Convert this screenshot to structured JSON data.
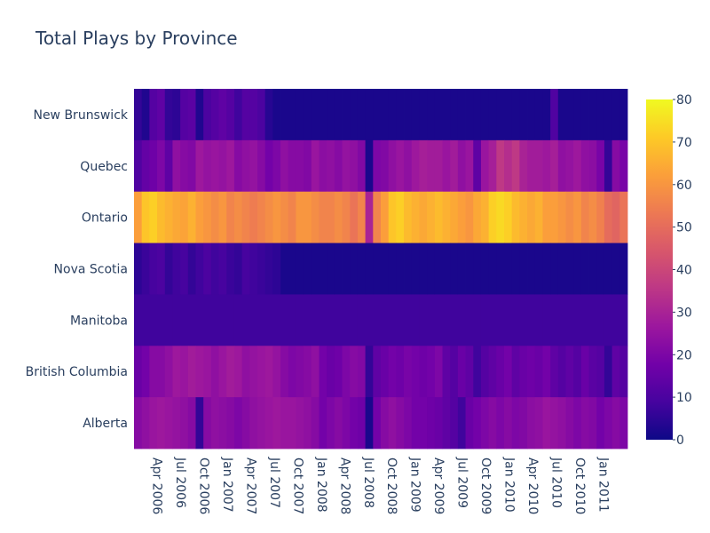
{
  "chart_data": {
    "type": "heatmap",
    "title": "Total Plays by Province",
    "xlabel": "",
    "ylabel": "",
    "x_start": "2006-01",
    "x_end": "2011-04",
    "x_ticks": [
      "Apr 2006",
      "Jul 2006",
      "Oct 2006",
      "Jan 2007",
      "Apr 2007",
      "Jul 2007",
      "Oct 2007",
      "Jan 2008",
      "Apr 2008",
      "Jul 2008",
      "Oct 2008",
      "Jan 2009",
      "Apr 2009",
      "Jul 2009",
      "Oct 2009",
      "Jan 2010",
      "Apr 2010",
      "Jul 2010",
      "Oct 2010",
      "Jan 2011"
    ],
    "y_categories": [
      "New Brunswick",
      "Quebec",
      "Ontario",
      "Nova Scotia",
      "Manitoba",
      "British Columbia",
      "Alberta"
    ],
    "series": [
      {
        "name": "New Brunswick",
        "values": [
          6,
          3,
          12,
          14,
          6,
          5,
          12,
          13,
          3,
          10,
          12,
          14,
          12,
          8,
          12,
          12,
          10,
          4,
          2,
          2,
          2,
          2,
          2,
          2,
          2,
          2,
          2,
          2,
          2,
          2,
          2,
          2,
          2,
          2,
          2,
          2,
          2,
          2,
          2,
          2,
          2,
          2,
          2,
          2,
          2,
          2,
          2,
          2,
          2,
          2,
          2,
          2,
          2,
          2,
          11,
          2,
          2,
          2,
          2,
          2,
          2,
          2,
          2,
          2
        ]
      },
      {
        "name": "Quebec",
        "values": [
          11,
          15,
          17,
          20,
          14,
          24,
          22,
          21,
          27,
          25,
          26,
          25,
          27,
          22,
          24,
          25,
          22,
          18,
          20,
          24,
          22,
          22,
          21,
          26,
          23,
          24,
          22,
          25,
          24,
          21,
          2,
          20,
          21,
          24,
          26,
          24,
          27,
          29,
          28,
          28,
          26,
          28,
          24,
          26,
          14,
          26,
          29,
          36,
          33,
          36,
          30,
          28,
          28,
          27,
          29,
          24,
          25,
          27,
          24,
          23,
          19,
          6,
          22,
          19
        ]
      },
      {
        "name": "Ontario",
        "values": [
          62,
          70,
          72,
          68,
          66,
          64,
          63,
          66,
          62,
          60,
          58,
          60,
          56,
          58,
          56,
          54,
          56,
          58,
          60,
          58,
          56,
          60,
          60,
          58,
          56,
          56,
          58,
          56,
          52,
          56,
          30,
          56,
          62,
          70,
          72,
          68,
          66,
          64,
          66,
          68,
          66,
          64,
          62,
          60,
          64,
          66,
          72,
          74,
          72,
          68,
          66,
          64,
          66,
          62,
          62,
          60,
          58,
          60,
          56,
          58,
          55,
          50,
          48,
          52
        ]
      },
      {
        "name": "Nova Scotia",
        "values": [
          5,
          7,
          9,
          10,
          6,
          8,
          9,
          6,
          8,
          10,
          8,
          9,
          7,
          6,
          9,
          8,
          7,
          6,
          5,
          2,
          2,
          2,
          2,
          2,
          2,
          2,
          2,
          2,
          2,
          2,
          2,
          2,
          2,
          2,
          2,
          2,
          2,
          2,
          2,
          2,
          2,
          2,
          2,
          2,
          2,
          2,
          2,
          2,
          2,
          2,
          2,
          2,
          2,
          2,
          2,
          2,
          2,
          2,
          2,
          2,
          2,
          2,
          2,
          2
        ]
      },
      {
        "name": "Manitoba",
        "values": [
          8,
          8,
          8,
          8,
          8,
          8,
          8,
          8,
          8,
          8,
          8,
          8,
          8,
          8,
          8,
          8,
          8,
          8,
          8,
          8,
          8,
          8,
          8,
          8,
          8,
          8,
          8,
          8,
          8,
          8,
          8,
          8,
          8,
          8,
          8,
          8,
          8,
          8,
          8,
          8,
          8,
          8,
          8,
          8,
          8,
          8,
          8,
          8,
          8,
          8,
          8,
          8,
          8,
          8,
          8,
          8,
          8,
          8,
          8,
          8,
          8,
          8,
          8,
          8
        ]
      },
      {
        "name": "British Columbia",
        "values": [
          16,
          18,
          22,
          22,
          24,
          27,
          26,
          28,
          27,
          26,
          24,
          26,
          28,
          27,
          24,
          25,
          26,
          27,
          25,
          22,
          20,
          21,
          22,
          24,
          18,
          16,
          17,
          20,
          22,
          21,
          6,
          14,
          16,
          18,
          17,
          19,
          18,
          17,
          18,
          20,
          14,
          12,
          16,
          14,
          8,
          12,
          14,
          16,
          18,
          14,
          16,
          17,
          16,
          18,
          14,
          12,
          14,
          12,
          16,
          13,
          12,
          6,
          14,
          12
        ]
      },
      {
        "name": "Alberta",
        "values": [
          22,
          24,
          26,
          27,
          26,
          25,
          24,
          22,
          6,
          22,
          24,
          23,
          22,
          20,
          22,
          24,
          25,
          26,
          27,
          26,
          26,
          25,
          24,
          22,
          18,
          20,
          22,
          20,
          18,
          17,
          2,
          18,
          22,
          24,
          22,
          20,
          18,
          18,
          17,
          16,
          14,
          12,
          8,
          16,
          18,
          20,
          22,
          20,
          22,
          20,
          21,
          23,
          24,
          26,
          25,
          24,
          22,
          20,
          22,
          21,
          18,
          20,
          22,
          20
        ]
      }
    ],
    "colorscale": [
      "#0d0887",
      "#46039f",
      "#7201a8",
      "#9c179e",
      "#bd3786",
      "#d8576b",
      "#ed7953",
      "#fb9f3a",
      "#fdca26",
      "#f0f921"
    ],
    "zmin": 0,
    "zmax": 80,
    "colorbar_ticks": [
      "0",
      "10",
      "20",
      "30",
      "40",
      "50",
      "60",
      "70",
      "80"
    ]
  }
}
